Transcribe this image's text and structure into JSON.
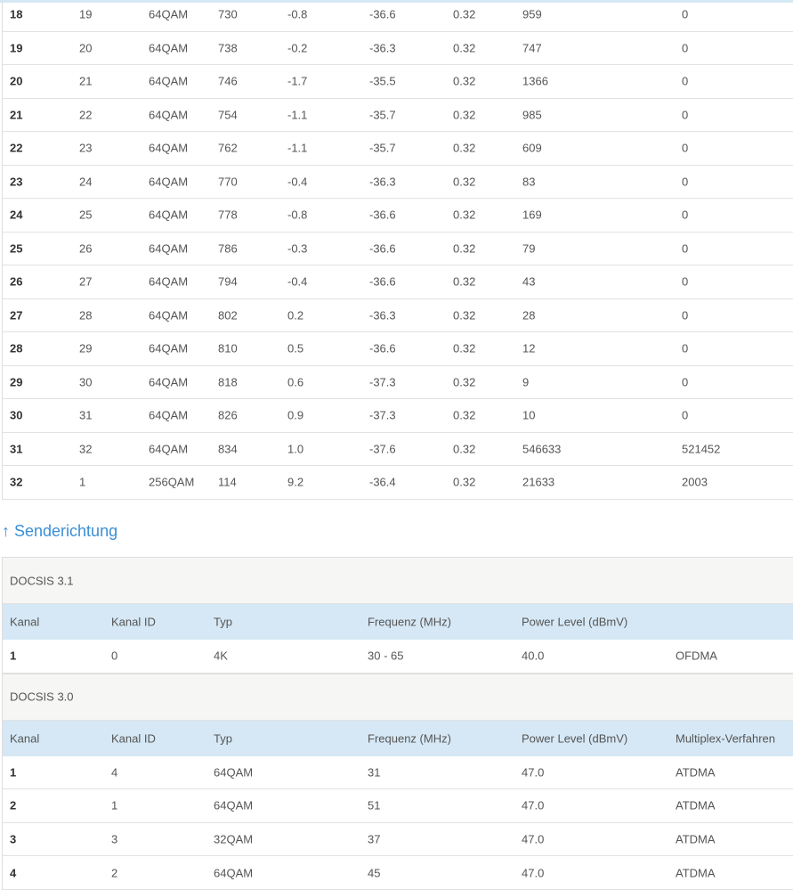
{
  "downstream_rows": [
    [
      "18",
      "19",
      "64QAM",
      "730",
      "-0.8",
      "-36.6",
      "0.32",
      "959",
      "0"
    ],
    [
      "19",
      "20",
      "64QAM",
      "738",
      "-0.2",
      "-36.3",
      "0.32",
      "747",
      "0"
    ],
    [
      "20",
      "21",
      "64QAM",
      "746",
      "-1.7",
      "-35.5",
      "0.32",
      "1366",
      "0"
    ],
    [
      "21",
      "22",
      "64QAM",
      "754",
      "-1.1",
      "-35.7",
      "0.32",
      "985",
      "0"
    ],
    [
      "22",
      "23",
      "64QAM",
      "762",
      "-1.1",
      "-35.7",
      "0.32",
      "609",
      "0"
    ],
    [
      "23",
      "24",
      "64QAM",
      "770",
      "-0.4",
      "-36.3",
      "0.32",
      "83",
      "0"
    ],
    [
      "24",
      "25",
      "64QAM",
      "778",
      "-0.8",
      "-36.6",
      "0.32",
      "169",
      "0"
    ],
    [
      "25",
      "26",
      "64QAM",
      "786",
      "-0.3",
      "-36.6",
      "0.32",
      "79",
      "0"
    ],
    [
      "26",
      "27",
      "64QAM",
      "794",
      "-0.4",
      "-36.6",
      "0.32",
      "43",
      "0"
    ],
    [
      "27",
      "28",
      "64QAM",
      "802",
      "0.2",
      "-36.3",
      "0.32",
      "28",
      "0"
    ],
    [
      "28",
      "29",
      "64QAM",
      "810",
      "0.5",
      "-36.6",
      "0.32",
      "12",
      "0"
    ],
    [
      "29",
      "30",
      "64QAM",
      "818",
      "0.6",
      "-37.3",
      "0.32",
      "9",
      "0"
    ],
    [
      "30",
      "31",
      "64QAM",
      "826",
      "0.9",
      "-37.3",
      "0.32",
      "10",
      "0"
    ],
    [
      "31",
      "32",
      "64QAM",
      "834",
      "1.0",
      "-37.6",
      "0.32",
      "546633",
      "521452"
    ],
    [
      "32",
      "1",
      "256QAM",
      "114",
      "9.2",
      "-36.4",
      "0.32",
      "21633",
      "2003"
    ]
  ],
  "upstream": {
    "title": "↑ Senderichtung",
    "docsis31": {
      "label": "DOCSIS 3.1",
      "headers": [
        "Kanal",
        "Kanal ID",
        "Typ",
        "Frequenz (MHz)",
        "Power Level (dBmV)",
        ""
      ],
      "rows": [
        [
          "1",
          "0",
          "4K",
          "30 - 65",
          "40.0",
          "OFDMA"
        ]
      ]
    },
    "docsis30": {
      "label": "DOCSIS 3.0",
      "headers": [
        "Kanal",
        "Kanal ID",
        "Typ",
        "Frequenz (MHz)",
        "Power Level (dBmV)",
        "Multiplex-Verfahren"
      ],
      "rows": [
        [
          "1",
          "4",
          "64QAM",
          "31",
          "47.0",
          "ATDMA"
        ],
        [
          "2",
          "1",
          "64QAM",
          "51",
          "47.0",
          "ATDMA"
        ],
        [
          "3",
          "3",
          "32QAM",
          "37",
          "47.0",
          "ATDMA"
        ],
        [
          "4",
          "2",
          "64QAM",
          "45",
          "47.0",
          "ATDMA"
        ]
      ]
    }
  }
}
